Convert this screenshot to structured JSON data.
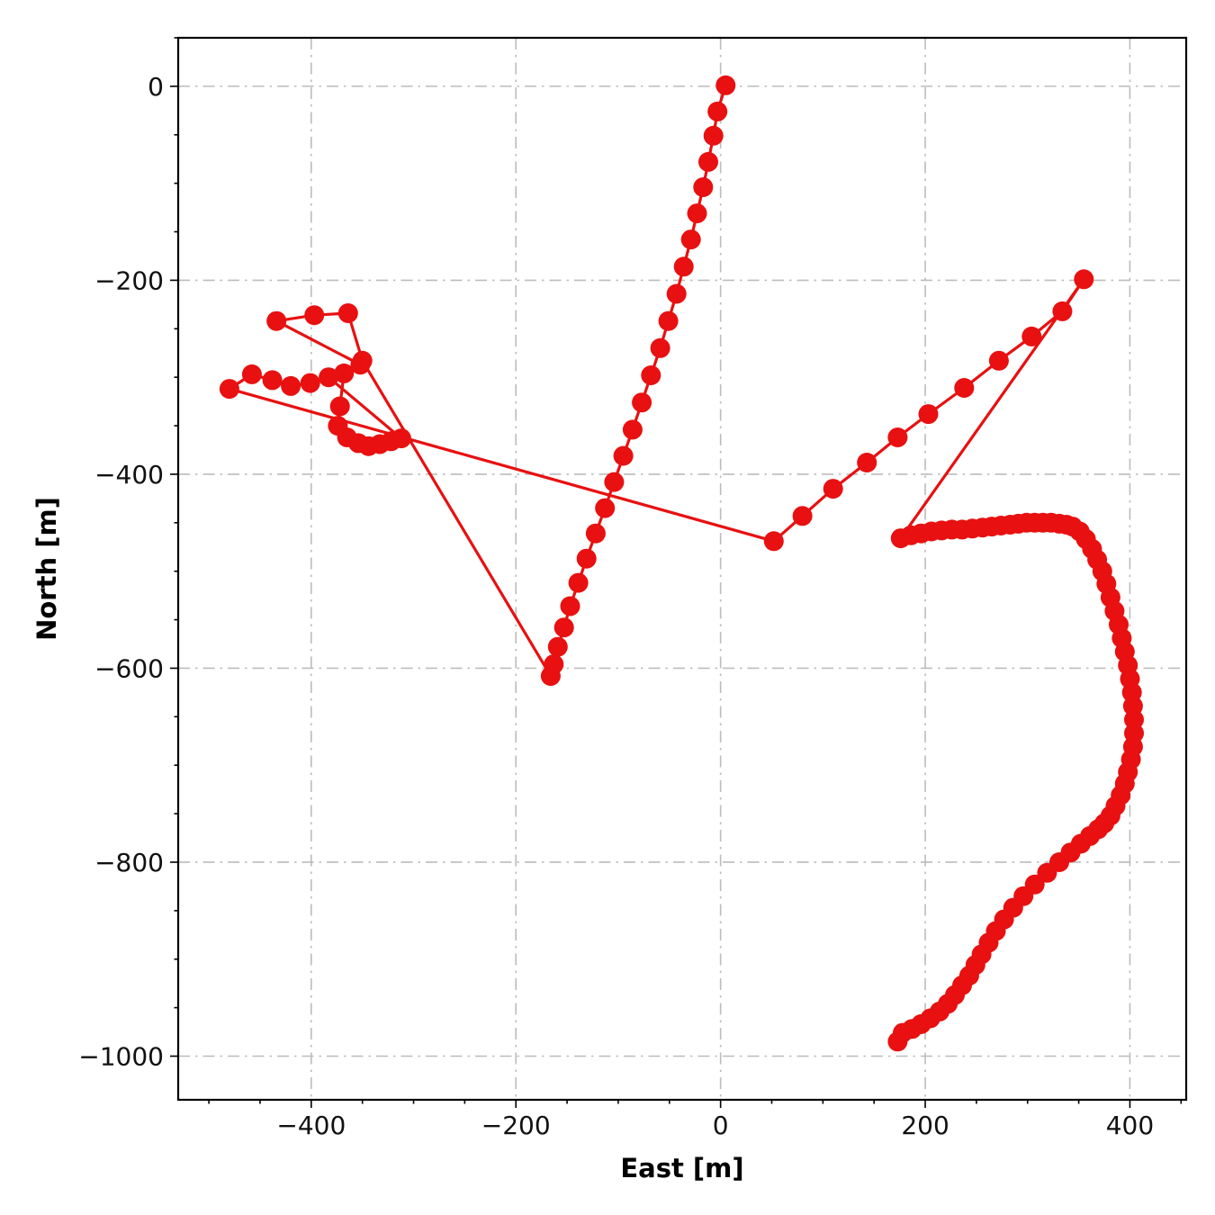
{
  "figure": {
    "background": "#ffffff"
  },
  "chart_data": {
    "type": "line",
    "title": "",
    "xlabel": "East [m]",
    "ylabel": "North [m]",
    "xlim": [
      -530,
      455
    ],
    "ylim": [
      -1045,
      50
    ],
    "xticks": [
      -400,
      -200,
      0,
      200,
      400
    ],
    "yticks": [
      0,
      -200,
      -400,
      -600,
      -800,
      -1000
    ],
    "minor_tick_step": 50,
    "grid": true,
    "grid_style": "dash-dot",
    "grid_color": "#bcbcbc",
    "line_color": "#e81010",
    "marker": "o",
    "marker_radius": 11,
    "line_width": 3.2,
    "legend": null,
    "series": [
      {
        "name": "trajectory",
        "points": [
          [
            5,
            1
          ],
          [
            -3,
            -26
          ],
          [
            -7,
            -51
          ],
          [
            -12,
            -78
          ],
          [
            -17,
            -104
          ],
          [
            -23,
            -131
          ],
          [
            -29,
            -158
          ],
          [
            -36,
            -186
          ],
          [
            -43,
            -214
          ],
          [
            -51,
            -242
          ],
          [
            -59,
            -270
          ],
          [
            -68,
            -298
          ],
          [
            -77,
            -326
          ],
          [
            -86,
            -354
          ],
          [
            -95,
            -381
          ],
          [
            -104,
            -408
          ],
          [
            -113,
            -435
          ],
          [
            -122,
            -461
          ],
          [
            -131,
            -487
          ],
          [
            -139,
            -512
          ],
          [
            -147,
            -536
          ],
          [
            -153,
            -558
          ],
          [
            -159,
            -578
          ],
          [
            -163,
            -596
          ],
          [
            -166,
            -608
          ],
          [
            -350,
            -283
          ],
          [
            -364,
            -234
          ],
          [
            -397,
            -236
          ],
          [
            -434,
            -242
          ],
          [
            -352,
            -287
          ],
          [
            -368,
            -296
          ],
          [
            -372,
            -330
          ],
          [
            -374,
            -350
          ],
          [
            -365,
            -362
          ],
          [
            -354,
            -368
          ],
          [
            -344,
            -371
          ],
          [
            -333,
            -369
          ],
          [
            -322,
            -366
          ],
          [
            -312,
            -363
          ],
          [
            -383,
            -300
          ],
          [
            -401,
            -306
          ],
          [
            -420,
            -309
          ],
          [
            -438,
            -303
          ],
          [
            -458,
            -297
          ],
          [
            -480,
            -312
          ],
          [
            52,
            -469
          ],
          [
            80,
            -443
          ],
          [
            110,
            -415
          ],
          [
            143,
            -388
          ],
          [
            173,
            -362
          ],
          [
            203,
            -338
          ],
          [
            238,
            -311
          ],
          [
            272,
            -283
          ],
          [
            304,
            -258
          ],
          [
            334,
            -232
          ],
          [
            355,
            -199
          ],
          [
            176,
            -466
          ],
          [
            186,
            -463
          ],
          [
            196,
            -461
          ],
          [
            206,
            -459
          ],
          [
            216,
            -458
          ],
          [
            226,
            -457
          ],
          [
            236,
            -457
          ],
          [
            246,
            -456
          ],
          [
            256,
            -455
          ],
          [
            265,
            -454
          ],
          [
            274,
            -453
          ],
          [
            283,
            -452
          ],
          [
            291,
            -451
          ],
          [
            299,
            -450
          ],
          [
            307,
            -450
          ],
          [
            315,
            -450
          ],
          [
            323,
            -450
          ],
          [
            331,
            -451
          ],
          [
            338,
            -452
          ],
          [
            344,
            -454
          ],
          [
            351,
            -459
          ],
          [
            357,
            -467
          ],
          [
            363,
            -477
          ],
          [
            368,
            -488
          ],
          [
            373,
            -500
          ],
          [
            377,
            -513
          ],
          [
            381,
            -527
          ],
          [
            385,
            -541
          ],
          [
            389,
            -555
          ],
          [
            392,
            -569
          ],
          [
            395,
            -583
          ],
          [
            398,
            -597
          ],
          [
            400,
            -611
          ],
          [
            402,
            -625
          ],
          [
            403,
            -639
          ],
          [
            404,
            -653
          ],
          [
            404,
            -667
          ],
          [
            403,
            -681
          ],
          [
            401,
            -694
          ],
          [
            398,
            -707
          ],
          [
            395,
            -719
          ],
          [
            391,
            -731
          ],
          [
            386,
            -742
          ],
          [
            381,
            -752
          ],
          [
            375,
            -760
          ],
          [
            369,
            -766
          ],
          [
            361,
            -773
          ],
          [
            352,
            -781
          ],
          [
            342,
            -790
          ],
          [
            331,
            -800
          ],
          [
            319,
            -811
          ],
          [
            307,
            -823
          ],
          [
            296,
            -835
          ],
          [
            286,
            -847
          ],
          [
            277,
            -859
          ],
          [
            269,
            -871
          ],
          [
            262,
            -883
          ],
          [
            255,
            -895
          ],
          [
            249,
            -906
          ],
          [
            243,
            -917
          ],
          [
            236,
            -927
          ],
          [
            229,
            -937
          ],
          [
            222,
            -946
          ],
          [
            214,
            -954
          ],
          [
            205,
            -961
          ],
          [
            196,
            -967
          ],
          [
            187,
            -972
          ],
          [
            178,
            -976
          ],
          [
            173,
            -985
          ]
        ]
      }
    ]
  }
}
